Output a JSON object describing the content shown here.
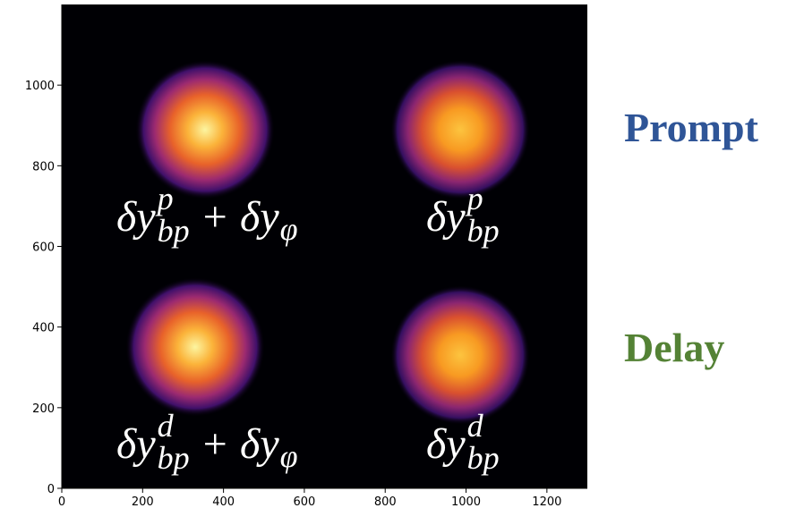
{
  "chart_data": {
    "type": "image",
    "xlim": [
      0,
      1300
    ],
    "ylim": [
      0,
      1200
    ],
    "xticks": [
      0,
      200,
      400,
      600,
      800,
      1000,
      1200
    ],
    "yticks": [
      0,
      200,
      400,
      600,
      800,
      1000
    ],
    "annotations": [
      {
        "base": "δy",
        "sup": "p",
        "sub": "bp",
        "rest": "+ δy",
        "rest_sub": "φ"
      },
      {
        "base": "δy",
        "sup": "p",
        "sub": "bp"
      },
      {
        "base": "δy",
        "sup": "d",
        "sub": "bp",
        "rest": "+ δy",
        "rest_sub": "φ"
      },
      {
        "base": "δy",
        "sup": "d",
        "sub": "bp"
      }
    ],
    "row_labels": [
      {
        "text": "Prompt",
        "color": "#2f5597"
      },
      {
        "text": "Delay",
        "color": "#548235"
      }
    ]
  }
}
